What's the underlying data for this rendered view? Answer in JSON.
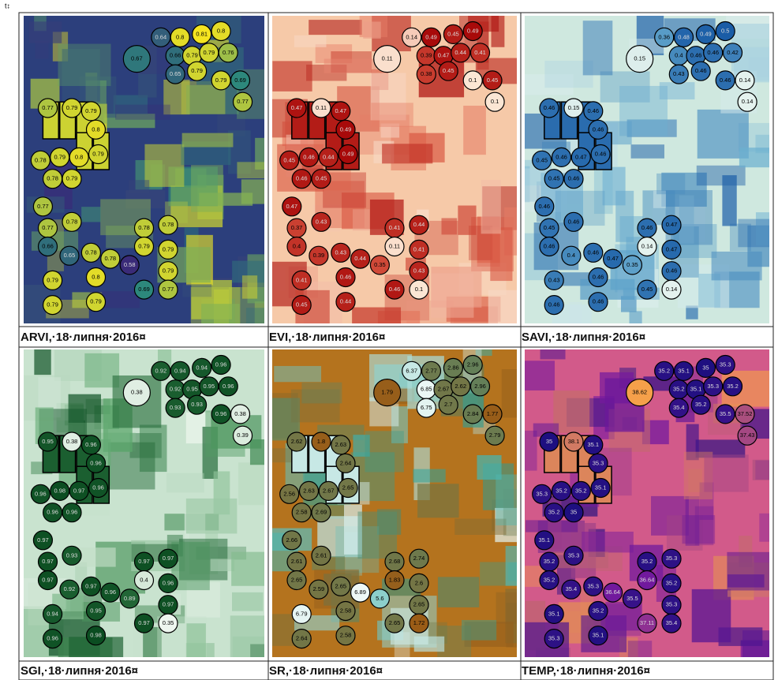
{
  "marker": "t↕",
  "panels": [
    {
      "caption": "ARVI,·18·липня·2016¤",
      "background": "#2c3f7c",
      "cmap": [
        "#3a2b78",
        "#2c8c7c",
        "#f4e420"
      ],
      "labels": [
        0.64,
        0.8,
        0.81,
        0.8,
        0.66,
        0.79,
        0.79,
        0.76,
        0.65,
        0.79,
        0.79,
        0.69,
        0.77,
        0.67,
        0.77,
        0.79,
        0.79,
        0.8,
        0.79,
        0.8,
        0.79,
        0.78,
        0.78,
        0.79,
        0.77,
        0.77,
        0.78,
        0.66,
        0.65,
        0.78,
        0.78,
        0.79,
        0.8,
        0.79,
        0.79,
        0.78,
        0.78,
        0.79,
        0.79,
        0.58,
        0.79,
        0.69,
        0.77
      ]
    },
    {
      "caption": "EVI,·18·липня·2016¤",
      "background": "#f6c9a8",
      "cmap": [
        "#fbe6d4",
        "#e0624a",
        "#a80a0a"
      ],
      "labels": [
        0.14,
        0.49,
        0.45,
        0.49,
        0.39,
        0.47,
        0.44,
        0.41,
        0.38,
        0.45,
        0.1,
        0.45,
        0.1,
        0.11,
        0.47,
        0.11,
        0.47,
        0.49,
        0.46,
        0.44,
        0.49,
        0.45,
        0.46,
        0.45,
        0.47,
        0.37,
        0.43,
        0.4,
        0.39,
        0.43,
        0.44,
        0.41,
        0.46,
        0.45,
        0.44,
        0.41,
        0.44,
        0.11,
        0.41,
        0.35,
        0.43,
        0.46,
        0.1
      ]
    },
    {
      "caption": "SAVI,·18·липня·2016¤",
      "background": "#cfe8df",
      "cmap": [
        "#e4f2ee",
        "#6aaed0",
        "#1a5ca6"
      ],
      "labels": [
        0.36,
        0.48,
        0.49,
        0.5,
        0.4,
        0.46,
        0.46,
        0.42,
        0.43,
        0.46,
        0.46,
        0.14,
        0.14,
        0.15,
        0.46,
        0.15,
        0.46,
        0.46,
        0.46,
        0.47,
        0.46,
        0.45,
        0.45,
        0.46,
        0.46,
        0.45,
        0.46,
        0.46,
        0.4,
        0.46,
        0.47,
        0.43,
        0.46,
        0.46,
        0.46,
        0.46,
        0.47,
        0.14,
        0.47,
        0.35,
        0.46,
        0.45,
        0.14
      ]
    },
    {
      "caption": "SGI,·18·липня·2016¤",
      "background": "#c9e3cf",
      "cmap": [
        "#eef6ef",
        "#5ca66c",
        "#0b4d21"
      ],
      "labels": [
        0.92,
        0.94,
        0.94,
        0.96,
        0.92,
        0.95,
        0.95,
        0.96,
        0.93,
        0.93,
        0.96,
        0.38,
        0.39,
        0.38,
        0.95,
        0.38,
        0.96,
        0.96,
        0.98,
        0.97,
        0.96,
        0.96,
        0.96,
        0.96,
        0.97,
        0.97,
        0.93,
        0.97,
        0.92,
        0.97,
        0.96,
        0.94,
        0.95,
        0.96,
        0.98,
        0.97,
        0.97,
        0.4,
        0.96,
        0.89,
        0.97,
        0.97,
        0.35
      ]
    },
    {
      "caption": "SR,·18·липня·2016¤",
      "background": "#b4731e",
      "cmap": [
        "#9a5c16",
        "#2aa6a0",
        "#eef8f6"
      ],
      "labels": [
        6.37,
        2.77,
        2.86,
        2.96,
        6.85,
        2.67,
        2.62,
        2.96,
        6.75,
        2.7,
        2.84,
        1.77,
        2.79,
        1.79,
        2.62,
        1.8,
        2.63,
        2.64,
        2.63,
        2.67,
        2.65,
        2.56,
        2.58,
        2.69,
        2.66,
        2.61,
        2.61,
        2.65,
        2.59,
        2.65,
        6.89,
        6.79,
        2.58,
        2.64,
        2.58,
        2.68,
        2.74,
        1.83,
        2.6,
        5.6,
        2.65,
        2.65,
        1.72
      ]
    },
    {
      "caption": "TEMP,·18·липня·2016¤",
      "background": "#d25a8a",
      "cmap": [
        "#1e0f80",
        "#7a1aa0",
        "#f5a04a"
      ],
      "labels": [
        35.2,
        35.1,
        35.0,
        35.3,
        35.2,
        35.1,
        35.3,
        35.2,
        35.4,
        35.2,
        35.5,
        37.52,
        37.43,
        38.62,
        35.0,
        38.1,
        35.1,
        35.3,
        35.2,
        35.2,
        35.1,
        35.3,
        35.2,
        35.0,
        35.1,
        35.2,
        35.3,
        35.2,
        35.4,
        35.3,
        36.64,
        35.1,
        35.2,
        35.3,
        35.1,
        35.2,
        35.3,
        36.64,
        35.2,
        35.5,
        35.3,
        37.11,
        35.4
      ]
    }
  ]
}
